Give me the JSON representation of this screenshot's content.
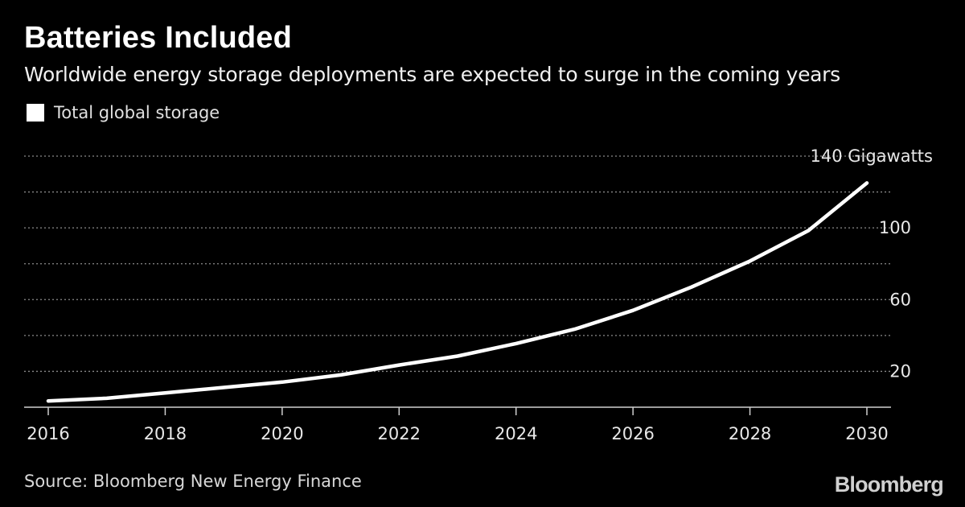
{
  "header": {
    "title": "Batteries Included",
    "subtitle": "Worldwide energy storage deployments are expected to surge in the coming years"
  },
  "legend": {
    "label": "Total global storage",
    "color": "#ffffff"
  },
  "footer": {
    "source": "Source: Bloomberg New Energy Finance",
    "brand": "Bloomberg"
  },
  "chart_data": {
    "type": "line",
    "title": "Batteries Included",
    "subtitle": "Worldwide energy storage deployments are expected to surge in the coming years",
    "xlabel": "",
    "ylabel": "Gigawatts",
    "xlim": [
      2016,
      2030
    ],
    "ylim": [
      0,
      140
    ],
    "x_ticks": [
      2016,
      2018,
      2020,
      2022,
      2024,
      2026,
      2028,
      2030
    ],
    "y_ticks": [
      20,
      60,
      100
    ],
    "y_top_label": "140 Gigawatts",
    "gridlines_y": [
      20,
      40,
      60,
      80,
      100,
      120,
      140
    ],
    "grid": true,
    "legend_position": "top-left",
    "series": [
      {
        "name": "Total global storage",
        "color": "#ffffff",
        "x": [
          2016,
          2017,
          2018,
          2019,
          2020,
          2021,
          2022,
          2023,
          2024,
          2025,
          2026,
          2027,
          2028,
          2029,
          2030
        ],
        "values": [
          3.5,
          5,
          8,
          11,
          14,
          18,
          23.5,
          28.5,
          35.5,
          43.5,
          54,
          67,
          81.5,
          98.5,
          125
        ]
      }
    ]
  }
}
